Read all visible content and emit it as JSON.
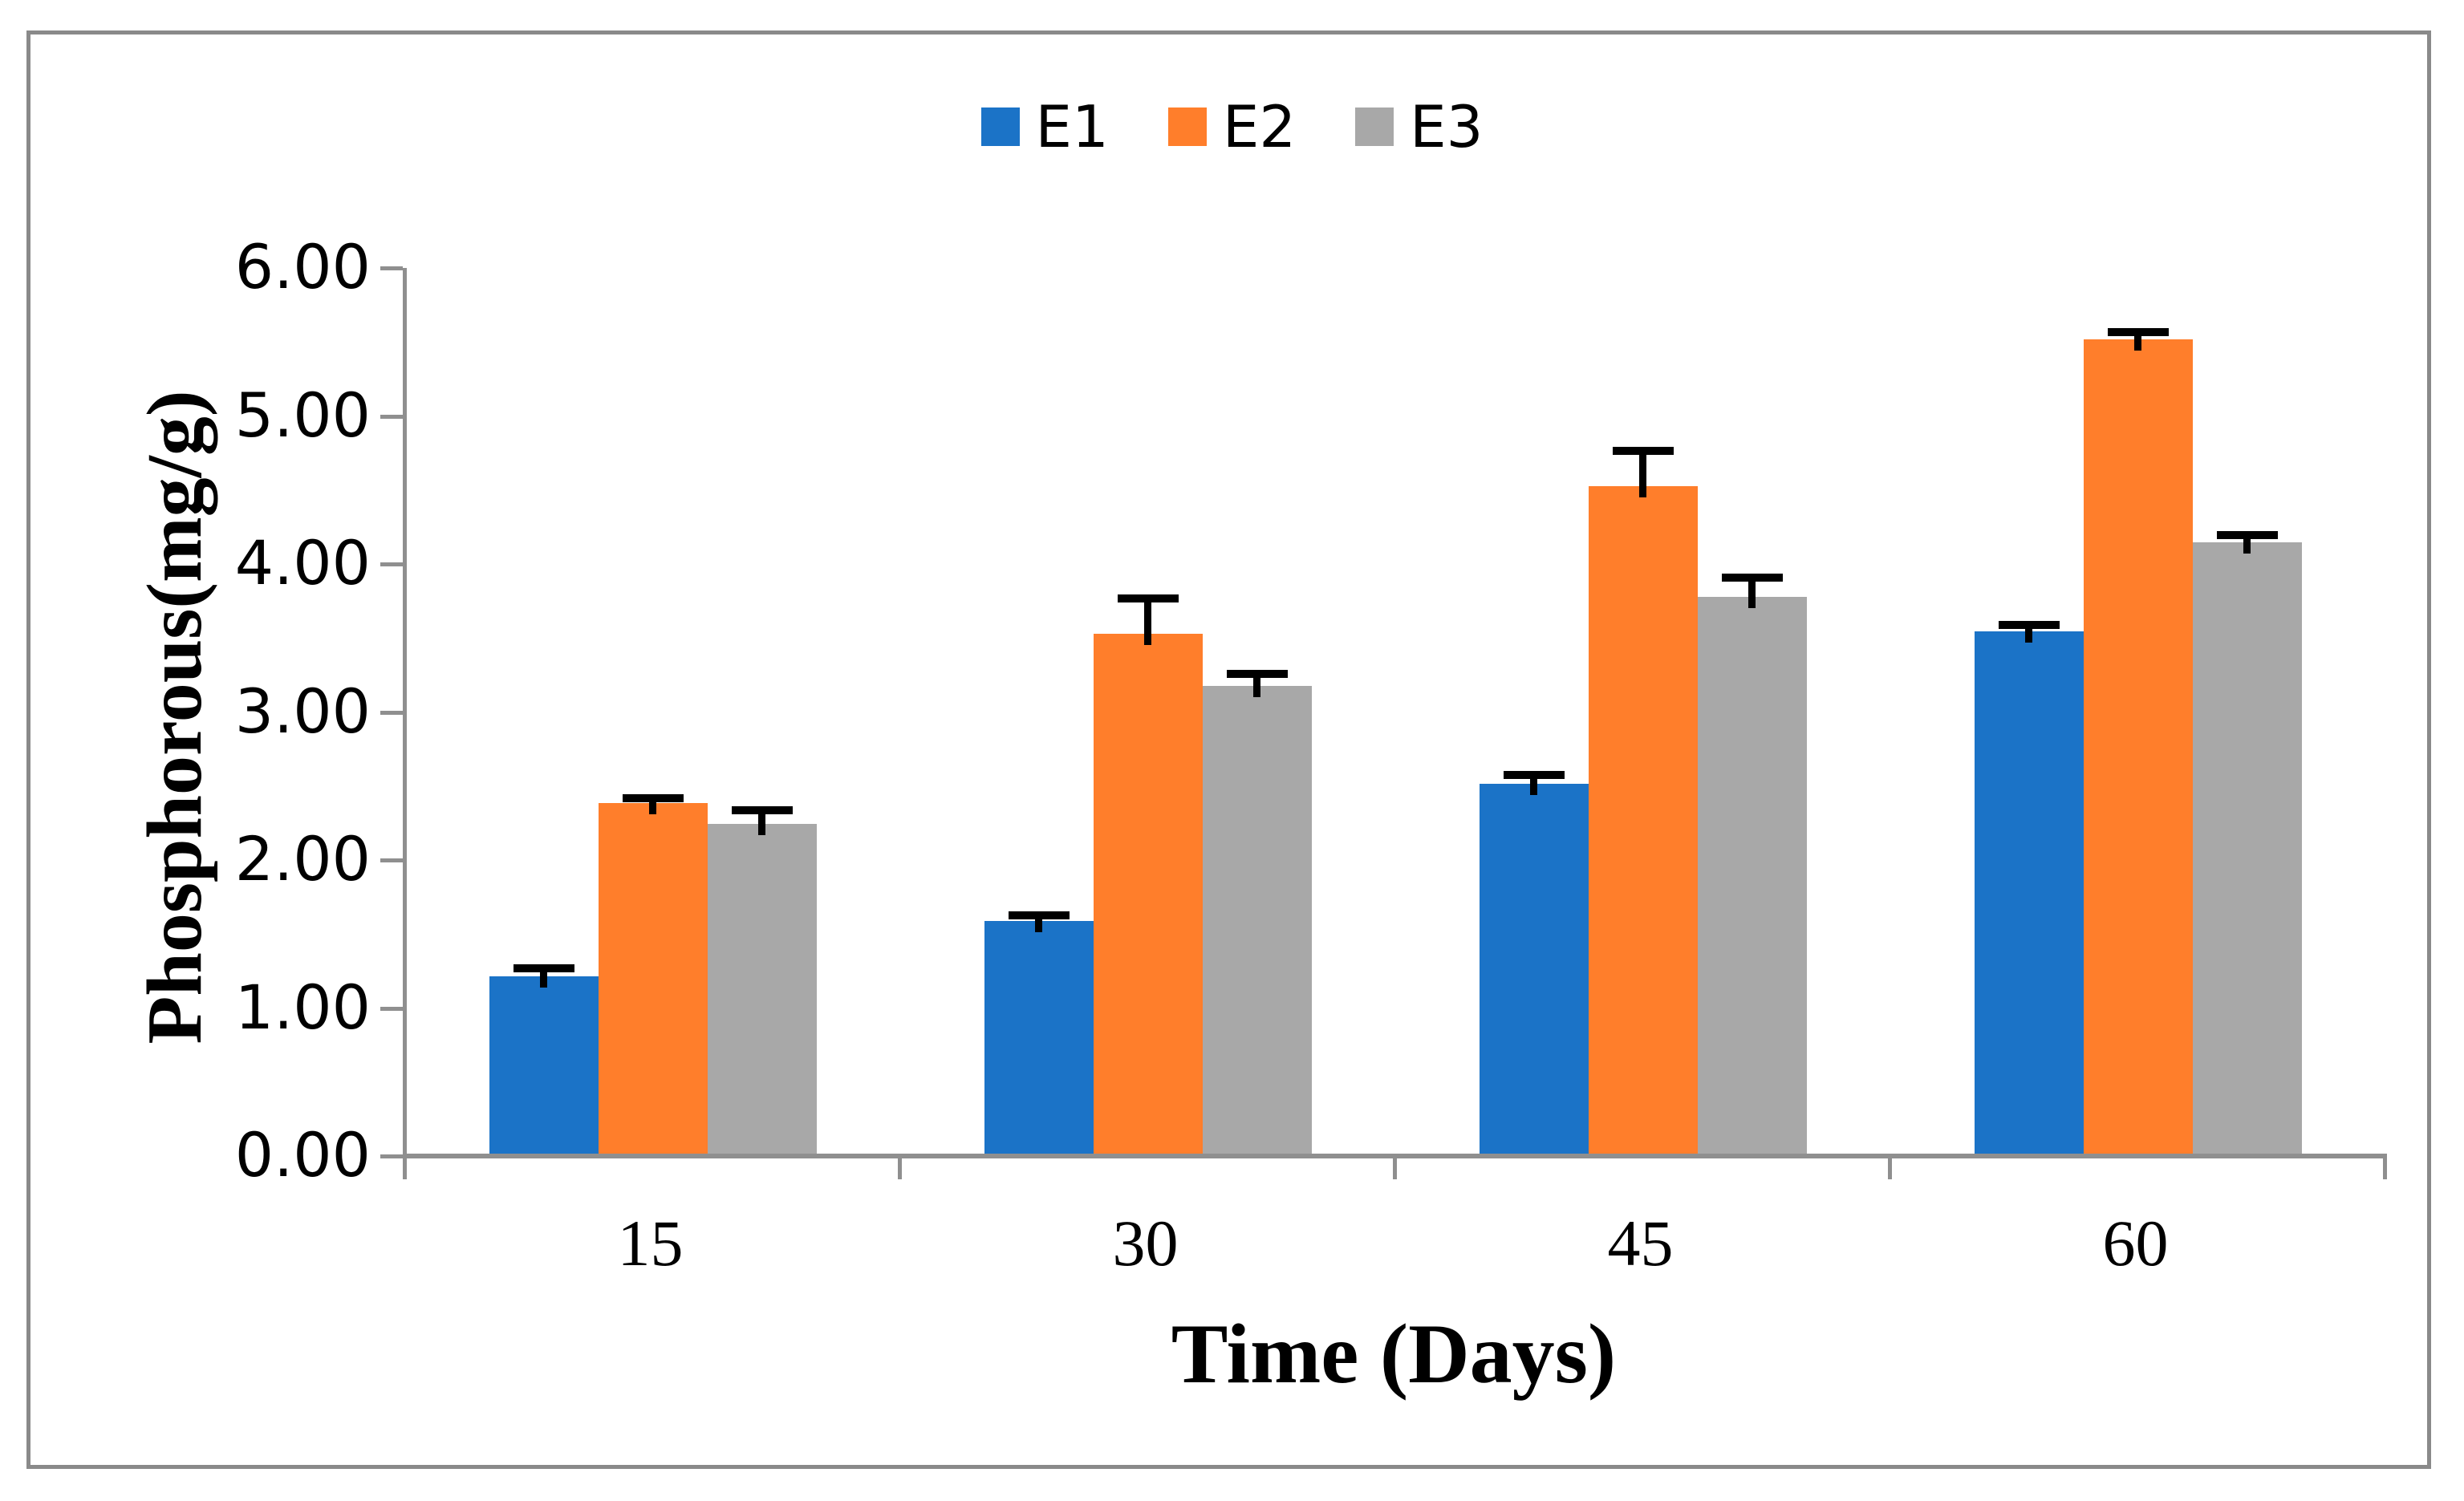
{
  "figure": {
    "background_color": "#FFFFFF",
    "border_color": "#8A8A8A",
    "axis_color": "#8F8F8F",
    "error_bar_color": "#000000"
  },
  "chart_data": {
    "type": "bar",
    "title": "",
    "categories": [
      "15",
      "30",
      "45",
      "60"
    ],
    "series": [
      {
        "name": "E1",
        "color": "#1B73C7",
        "values": [
          1.2,
          1.57,
          2.5,
          3.53
        ],
        "errors": [
          0.05,
          0.04,
          0.06,
          0.04
        ]
      },
      {
        "name": "E2",
        "color": "#FF7E2B",
        "values": [
          2.37,
          3.51,
          4.51,
          5.5
        ],
        "errors": [
          0.03,
          0.24,
          0.24,
          0.05
        ]
      },
      {
        "name": "E3",
        "color": "#A8A8A8",
        "values": [
          2.23,
          3.16,
          3.76,
          4.13
        ],
        "errors": [
          0.09,
          0.08,
          0.13,
          0.05
        ]
      }
    ],
    "xlabel": "Time (Days)",
    "ylabel": "Phosphorous(mg/g)",
    "ylim": [
      0,
      6
    ],
    "ytick_step": 1,
    "ytick_labels": [
      "0.00",
      "1.00",
      "2.00",
      "3.00",
      "4.00",
      "5.00",
      "6.00"
    ],
    "grid": false,
    "legend_position": "top-center",
    "error_bars": "upper"
  }
}
